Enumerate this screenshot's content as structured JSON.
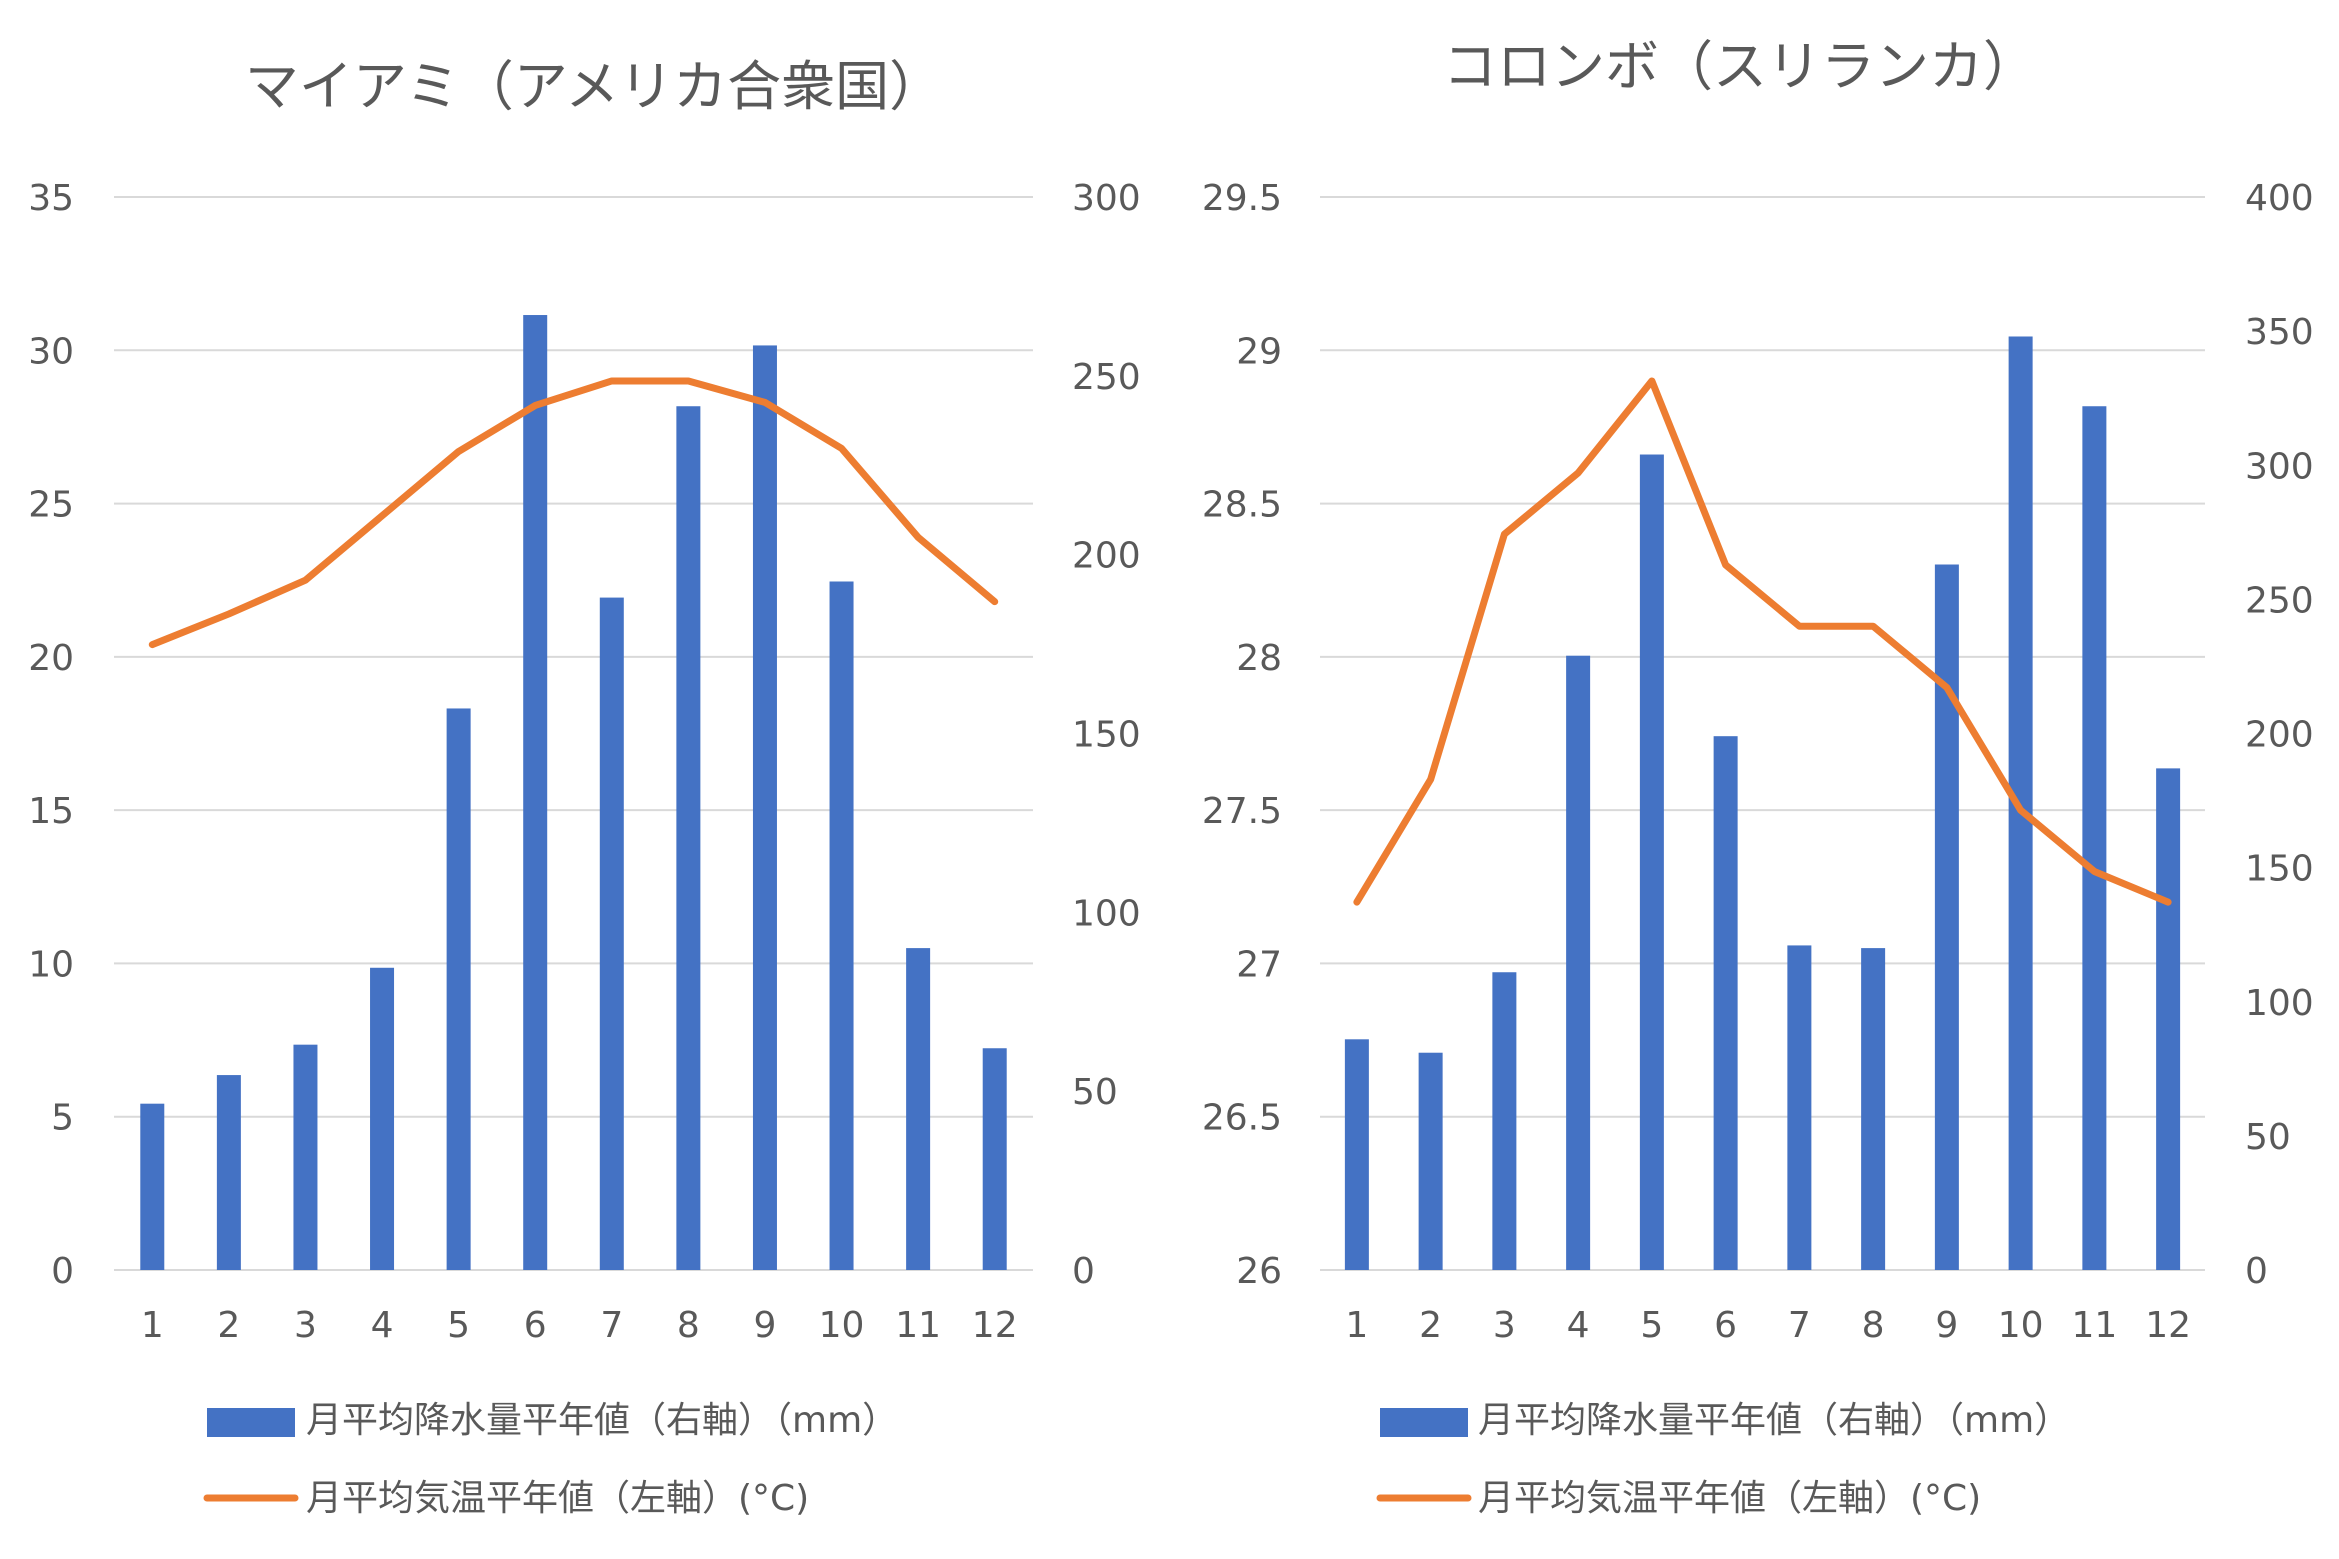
{
  "chart_data": [
    {
      "type": "bar+line",
      "title": "マイアミ（アメリカ合衆国）",
      "categories": [
        "1",
        "2",
        "3",
        "4",
        "5",
        "6",
        "7",
        "8",
        "9",
        "10",
        "11",
        "12"
      ],
      "series": [
        {
          "name": "月平均降水量平年値（右軸）（mm）",
          "type": "bar",
          "axis": "right",
          "color": "#4472c4",
          "values": [
            46.5,
            54.5,
            63,
            84.5,
            157,
            267,
            188,
            241.5,
            258.5,
            192.5,
            90,
            62
          ]
        },
        {
          "name": "月平均気温平年値（左軸）(°C)",
          "type": "line",
          "axis": "left",
          "color": "#ed7d31",
          "values": [
            20.4,
            21.4,
            22.5,
            24.6,
            26.7,
            28.2,
            29.0,
            29.0,
            28.3,
            26.8,
            23.9,
            21.8
          ]
        }
      ],
      "y_left": {
        "min": 0,
        "max": 35,
        "ticks": [
          "0",
          "5",
          "10",
          "15",
          "20",
          "25",
          "30",
          "35"
        ]
      },
      "y_right": {
        "min": 0,
        "max": 300,
        "ticks": [
          "0",
          "50",
          "100",
          "150",
          "200",
          "250",
          "300"
        ]
      },
      "grid": true,
      "legend": "bottom"
    },
    {
      "type": "bar+line",
      "title": "コロンボ（スリランカ）",
      "categories": [
        "1",
        "2",
        "3",
        "4",
        "5",
        "6",
        "7",
        "8",
        "9",
        "10",
        "11",
        "12"
      ],
      "series": [
        {
          "name": "月平均降水量平年値（右軸）（mm）",
          "type": "bar",
          "axis": "right",
          "color": "#4472c4",
          "values": [
            86,
            81,
            111,
            229,
            304,
            199,
            121,
            120,
            263,
            348,
            322,
            187
          ]
        },
        {
          "name": "月平均気温平年値（左軸）(°C)",
          "type": "line",
          "axis": "left",
          "color": "#ed7d31",
          "values": [
            27.2,
            27.6,
            28.4,
            28.6,
            28.9,
            28.3,
            28.1,
            28.1,
            27.9,
            27.5,
            27.3,
            27.2
          ]
        }
      ],
      "y_left": {
        "min": 26,
        "max": 29.5,
        "ticks": [
          "26",
          "26.5",
          "27",
          "27.5",
          "28",
          "28.5",
          "29",
          "29.5"
        ]
      },
      "y_right": {
        "min": 0,
        "max": 400,
        "ticks": [
          "0",
          "50",
          "100",
          "150",
          "200",
          "250",
          "300",
          "350",
          "400"
        ]
      },
      "grid": true,
      "legend": "bottom"
    }
  ]
}
